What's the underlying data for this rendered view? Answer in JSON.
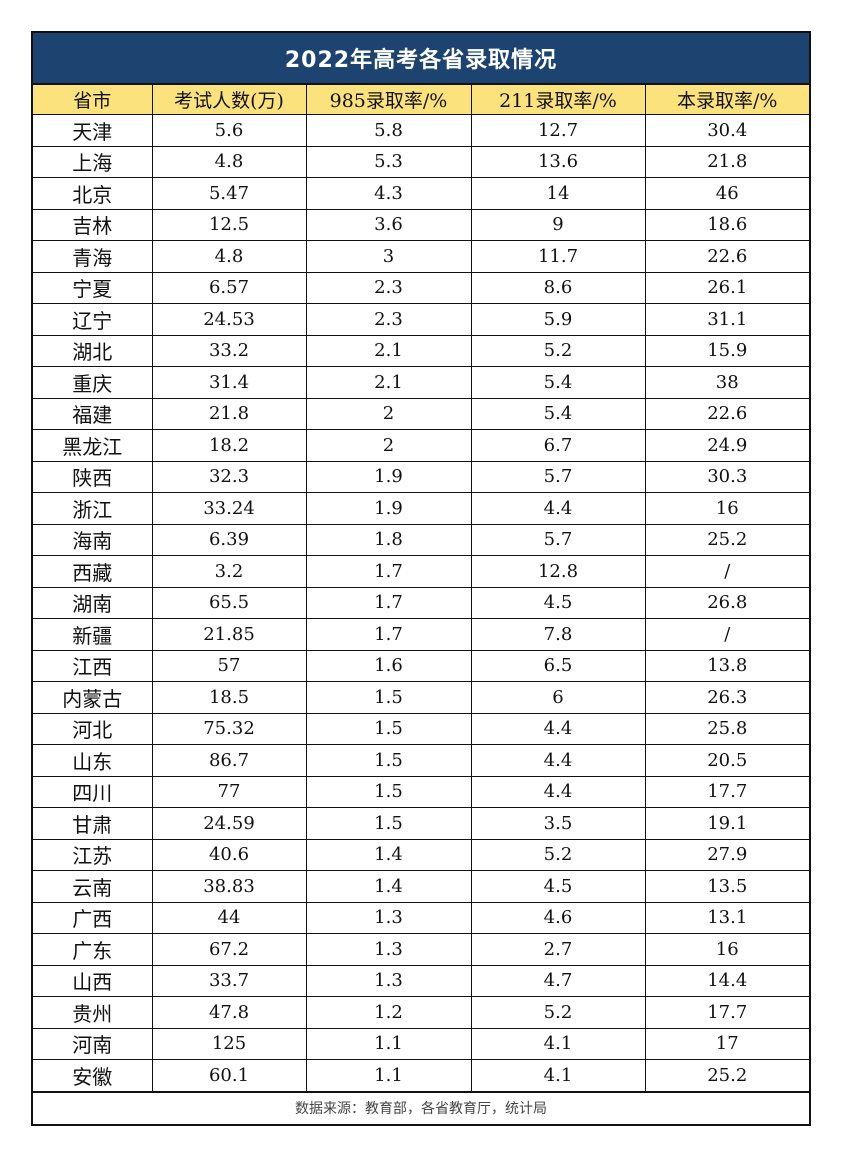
{
  "title": "2022年高考各省录取情况",
  "columns": [
    "省市",
    "考试人数(万)",
    "985录取率/%",
    "211录取率/%",
    "本录取率/%"
  ],
  "rows": [
    [
      "天津",
      "5.6",
      "5.8",
      "12.7",
      "30.4"
    ],
    [
      "上海",
      "4.8",
      "5.3",
      "13.6",
      "21.8"
    ],
    [
      "北京",
      "5.47",
      "4.3",
      "14",
      "46"
    ],
    [
      "吉林",
      "12.5",
      "3.6",
      "9",
      "18.6"
    ],
    [
      "青海",
      "4.8",
      "3",
      "11.7",
      "22.6"
    ],
    [
      "宁夏",
      "6.57",
      "2.3",
      "8.6",
      "26.1"
    ],
    [
      "辽宁",
      "24.53",
      "2.3",
      "5.9",
      "31.1"
    ],
    [
      "湖北",
      "33.2",
      "2.1",
      "5.2",
      "15.9"
    ],
    [
      "重庆",
      "31.4",
      "2.1",
      "5.4",
      "38"
    ],
    [
      "福建",
      "21.8",
      "2",
      "5.4",
      "22.6"
    ],
    [
      "黑龙江",
      "18.2",
      "2",
      "6.7",
      "24.9"
    ],
    [
      "陕西",
      "32.3",
      "1.9",
      "5.7",
      "30.3"
    ],
    [
      "浙江",
      "33.24",
      "1.9",
      "4.4",
      "16"
    ],
    [
      "海南",
      "6.39",
      "1.8",
      "5.7",
      "25.2"
    ],
    [
      "西藏",
      "3.2",
      "1.7",
      "12.8",
      "/"
    ],
    [
      "湖南",
      "65.5",
      "1.7",
      "4.5",
      "26.8"
    ],
    [
      "新疆",
      "21.85",
      "1.7",
      "7.8",
      "/"
    ],
    [
      "江西",
      "57",
      "1.6",
      "6.5",
      "13.8"
    ],
    [
      "内蒙古",
      "18.5",
      "1.5",
      "6",
      "26.3"
    ],
    [
      "河北",
      "75.32",
      "1.5",
      "4.4",
      "25.8"
    ],
    [
      "山东",
      "86.7",
      "1.5",
      "4.4",
      "20.5"
    ],
    [
      "四川",
      "77",
      "1.5",
      "4.4",
      "17.7"
    ],
    [
      "甘肃",
      "24.59",
      "1.5",
      "3.5",
      "19.1"
    ],
    [
      "江苏",
      "40.6",
      "1.4",
      "5.2",
      "27.9"
    ],
    [
      "云南",
      "38.83",
      "1.4",
      "4.5",
      "13.5"
    ],
    [
      "广西",
      "44",
      "1.3",
      "4.6",
      "13.1"
    ],
    [
      "广东",
      "67.2",
      "1.3",
      "2.7",
      "16"
    ],
    [
      "山西",
      "33.7",
      "1.3",
      "4.7",
      "14.4"
    ],
    [
      "贵州",
      "47.8",
      "1.2",
      "5.2",
      "17.7"
    ],
    [
      "河南",
      "125",
      "1.1",
      "4.1",
      "17"
    ],
    [
      "安徽",
      "60.1",
      "1.1",
      "4.1",
      "25.2"
    ]
  ],
  "footer": "数据来源：教育部，各省教育厅，统计局",
  "colors": {
    "title_bg": "#1d4371",
    "header_bg": "#fbe27c"
  }
}
